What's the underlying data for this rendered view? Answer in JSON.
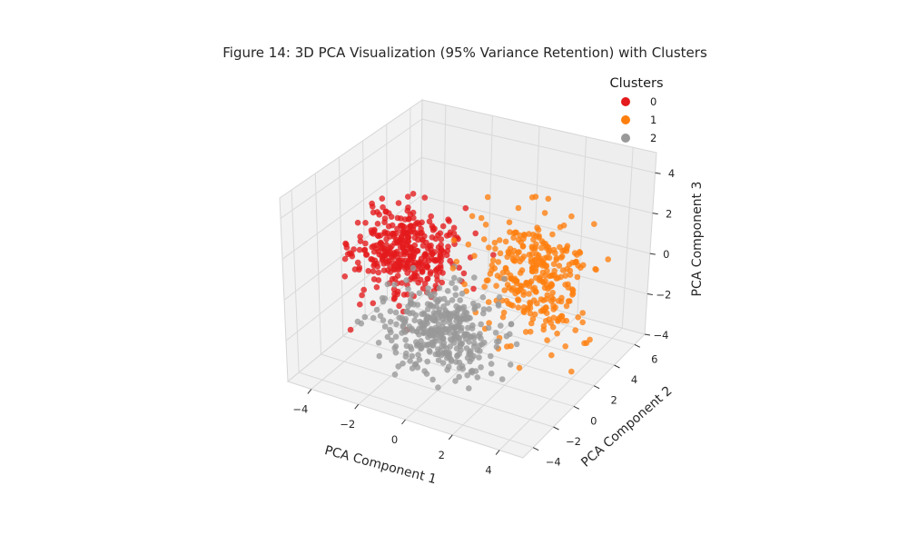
{
  "chart_data": {
    "type": "scatter",
    "title": "Figure 14: 3D PCA Visualization (95% Variance Retention) with Clusters",
    "xlabel": "PCA Component 1",
    "ylabel": "PCA Component 2",
    "zlabel": "PCA Component 3",
    "xlim": [
      -5,
      5
    ],
    "ylim": [
      -5,
      7
    ],
    "zlim": [
      -4,
      5
    ],
    "xticks": [
      "−4",
      "−2",
      "0",
      "2",
      "4"
    ],
    "yticks": [
      "−4",
      "−2",
      "0",
      "2",
      "4",
      "6"
    ],
    "zticks": [
      "−4",
      "−2",
      "0",
      "2",
      "4"
    ],
    "grid": true,
    "legend": {
      "title": "Clusters",
      "placement": "top-right"
    },
    "series": [
      {
        "name": "0",
        "color": "#e41a1c",
        "center": [
          -2.6,
          0.6,
          0.8
        ],
        "spread": [
          1.0,
          1.0,
          0.9
        ],
        "count": 380
      },
      {
        "name": "1",
        "color": "#ff7f0e",
        "center": [
          2.2,
          1.8,
          0.8
        ],
        "spread": [
          1.1,
          1.2,
          1.3
        ],
        "count": 320
      },
      {
        "name": "2",
        "color": "#999999",
        "center": [
          0.3,
          -2.3,
          -0.6
        ],
        "spread": [
          1.1,
          1.0,
          0.9
        ],
        "count": 380
      }
    ]
  }
}
